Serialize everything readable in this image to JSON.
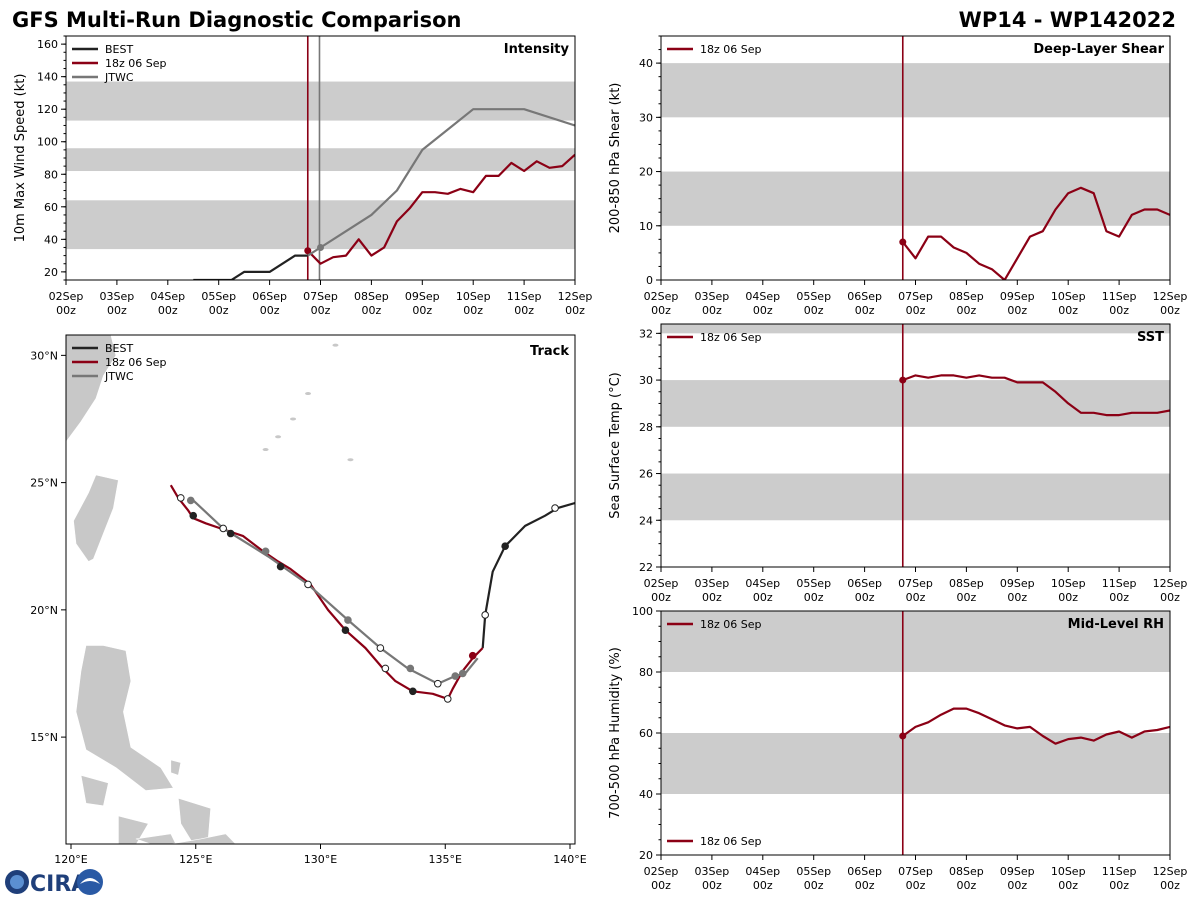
{
  "header": {
    "title_left": "GFS Multi-Run Diagnostic Comparison",
    "title_right": "WP14 - WP142022"
  },
  "logo": {
    "text": "CIRA"
  },
  "colors": {
    "best": "#222222",
    "run": "#8b0015",
    "jtwc": "#777777",
    "band": "#cccccc",
    "land": "#c8c8c8"
  },
  "time_ticks": [
    {
      "day": "02Sep",
      "hour": "00z"
    },
    {
      "day": "03Sep",
      "hour": "00z"
    },
    {
      "day": "04Sep",
      "hour": "00z"
    },
    {
      "day": "05Sep",
      "hour": "00z"
    },
    {
      "day": "06Sep",
      "hour": "00z"
    },
    {
      "day": "07Sep",
      "hour": "00z"
    },
    {
      "day": "08Sep",
      "hour": "00z"
    },
    {
      "day": "09Sep",
      "hour": "00z"
    },
    {
      "day": "10Sep",
      "hour": "00z"
    },
    {
      "day": "11Sep",
      "hour": "00z"
    },
    {
      "day": "12Sep",
      "hour": "00z"
    }
  ],
  "chart_data": [
    {
      "id": "intensity",
      "type": "line",
      "title": "Intensity",
      "ylabel": "10m Max Wind Speed (kt)",
      "xlim_days": [
        0,
        10
      ],
      "ylim": [
        15,
        165
      ],
      "yticks": [
        20,
        40,
        60,
        80,
        100,
        120,
        140,
        160
      ],
      "bands": [
        [
          34,
          64
        ],
        [
          82,
          96
        ],
        [
          113,
          137
        ]
      ],
      "init_time_day": 4.75,
      "jtwc_time_day": 4.98,
      "legend": [
        "BEST",
        "18z 06 Sep",
        "JTWC"
      ],
      "series": [
        {
          "name": "BEST",
          "x": [
            2.5,
            3.25,
            3.5,
            4.0,
            4.5,
            4.75
          ],
          "y": [
            15,
            15,
            20,
            20,
            30,
            30
          ]
        },
        {
          "name": "18z 06 Sep",
          "x": [
            4.75,
            5.0,
            5.25,
            5.5,
            5.75,
            6.0,
            6.25,
            6.5,
            6.75,
            7.0,
            7.25,
            7.5,
            7.75,
            8.0,
            8.25,
            8.5,
            8.75,
            9.0,
            9.25,
            9.5,
            9.75,
            10.0
          ],
          "y": [
            33,
            25,
            29,
            30,
            40,
            30,
            35,
            51,
            59,
            69,
            69,
            68,
            71,
            69,
            79,
            79,
            87,
            82,
            88,
            84,
            85,
            92
          ]
        },
        {
          "name": "JTWC",
          "x": [
            4.75,
            5.0,
            5.5,
            6.0,
            6.5,
            7.0,
            8.0,
            9.0,
            10.0
          ],
          "y": [
            30,
            35,
            45,
            55,
            70,
            95,
            120,
            120,
            110
          ]
        }
      ]
    },
    {
      "id": "shear",
      "type": "line",
      "title": "Deep-Layer Shear",
      "ylabel": "200-850 hPa Shear (kt)",
      "xlim_days": [
        0,
        10
      ],
      "ylim": [
        0,
        45
      ],
      "yticks": [
        0,
        10,
        20,
        30,
        40
      ],
      "bands": [
        [
          10,
          20
        ],
        [
          30,
          40
        ]
      ],
      "init_time_day": 4.75,
      "legend": [
        "18z 06 Sep"
      ],
      "series": [
        {
          "name": "18z 06 Sep",
          "x": [
            4.75,
            5.0,
            5.25,
            5.5,
            5.75,
            6.0,
            6.25,
            6.5,
            6.75,
            7.0,
            7.25,
            7.5,
            7.75,
            8.0,
            8.25,
            8.5,
            8.75,
            9.0,
            9.25,
            9.5,
            9.75,
            10.0
          ],
          "y": [
            7,
            4,
            8,
            8,
            6,
            5,
            3,
            2,
            0,
            4,
            8,
            9,
            13,
            16,
            17,
            16,
            9,
            8,
            12,
            13,
            13,
            12
          ]
        }
      ]
    },
    {
      "id": "sst",
      "type": "line",
      "title": "SST",
      "ylabel": "Sea Surface Temp (°C)",
      "xlim_days": [
        0,
        10
      ],
      "ylim": [
        22,
        32.4
      ],
      "yticks": [
        22,
        24,
        26,
        28,
        30,
        32
      ],
      "bands": [
        [
          24,
          26
        ],
        [
          28,
          30
        ],
        [
          32,
          34
        ]
      ],
      "init_time_day": 4.75,
      "legend": [
        "18z 06 Sep"
      ],
      "series": [
        {
          "name": "18z 06 Sep",
          "x": [
            4.75,
            5.0,
            5.25,
            5.5,
            5.75,
            6.0,
            6.25,
            6.5,
            6.75,
            7.0,
            7.25,
            7.5,
            7.75,
            8.0,
            8.25,
            8.5,
            8.75,
            9.0,
            9.25,
            9.5,
            9.75,
            10.0
          ],
          "y": [
            30.0,
            30.2,
            30.1,
            30.2,
            30.2,
            30.1,
            30.2,
            30.1,
            30.1,
            29.9,
            29.9,
            29.9,
            29.5,
            29.0,
            28.6,
            28.6,
            28.5,
            28.5,
            28.6,
            28.6,
            28.6,
            28.7
          ]
        }
      ]
    },
    {
      "id": "rh",
      "type": "line",
      "title": "Mid-Level RH",
      "ylabel": "700-500 hPa Humidity (%)",
      "xlim_days": [
        0,
        10
      ],
      "ylim": [
        20,
        100
      ],
      "yticks": [
        20,
        40,
        60,
        80,
        100
      ],
      "bands": [
        [
          40,
          60
        ],
        [
          80,
          100
        ]
      ],
      "init_time_day": 4.75,
      "legend": [
        "18z 06 Sep"
      ],
      "series": [
        {
          "name": "18z 06 Sep",
          "x": [
            4.75,
            5.0,
            5.25,
            5.5,
            5.75,
            6.0,
            6.25,
            6.5,
            6.75,
            7.0,
            7.25,
            7.5,
            7.75,
            8.0,
            8.25,
            8.5,
            8.75,
            9.0,
            9.25,
            9.5,
            9.75,
            10.0
          ],
          "y": [
            59,
            62,
            63.5,
            66,
            68,
            68,
            66.5,
            64.5,
            62.5,
            61.5,
            62,
            59,
            56.5,
            58,
            58.5,
            57.5,
            59.5,
            60.5,
            58.5,
            60.5,
            61,
            62
          ]
        }
      ]
    },
    {
      "id": "track",
      "type": "scatter",
      "title": "Track",
      "xlim_lon": [
        119.8,
        140.2
      ],
      "ylim_lat": [
        10.8,
        30.8
      ],
      "xticks": [
        {
          "v": 120,
          "label": "120°E"
        },
        {
          "v": 125,
          "label": "125°E"
        },
        {
          "v": 130,
          "label": "130°E"
        },
        {
          "v": 135,
          "label": "135°E"
        },
        {
          "v": 140,
          "label": "140°E"
        }
      ],
      "yticks": [
        {
          "v": 15,
          "label": "15°N"
        },
        {
          "v": 20,
          "label": "20°N"
        },
        {
          "v": 25,
          "label": "25°N"
        },
        {
          "v": 30,
          "label": "30°N"
        }
      ],
      "legend": [
        "BEST",
        "18z 06 Sep",
        "JTWC"
      ],
      "series": [
        {
          "name": "BEST",
          "lon": [
            140.2,
            139.5,
            139.0,
            138.2,
            137.4,
            136.9,
            136.6,
            136.5
          ],
          "lat": [
            24.2,
            24.0,
            23.7,
            23.3,
            22.5,
            21.5,
            19.8,
            18.5
          ]
        },
        {
          "name": "18z 06 Sep",
          "lon": [
            136.5,
            136.1,
            135.7,
            135.3,
            135.1,
            134.5,
            133.7,
            133.0,
            132.5,
            131.8,
            131.0,
            130.3,
            129.6,
            128.8,
            128.3,
            127.7,
            126.9,
            126.3,
            125.4,
            124.9,
            124.7,
            124.3,
            124.0
          ],
          "lat": [
            18.5,
            18.1,
            17.6,
            16.9,
            16.5,
            16.7,
            16.8,
            17.2,
            17.7,
            18.5,
            19.2,
            20.0,
            21.0,
            21.6,
            21.9,
            22.3,
            22.9,
            23.1,
            23.4,
            23.6,
            23.9,
            24.4,
            24.9
          ]
        },
        {
          "name": "JTWC",
          "lon": [
            136.3,
            135.8,
            135.4,
            134.7,
            133.5,
            132.4,
            131.1,
            129.5,
            127.9,
            126.1,
            124.9
          ],
          "lat": [
            18.1,
            17.5,
            17.4,
            17.1,
            17.7,
            18.5,
            19.6,
            21.0,
            22.1,
            23.2,
            24.3
          ]
        }
      ],
      "markers": [
        {
          "name": "18z 06 Sep",
          "lon": [
            136.1,
            135.1,
            133.7,
            132.6,
            131.0,
            128.4,
            126.4,
            124.9,
            124.4
          ],
          "lat": [
            18.2,
            16.5,
            16.8,
            17.7,
            19.2,
            21.7,
            23.0,
            23.7,
            24.4
          ],
          "filled": [
            true,
            false,
            true,
            false,
            true,
            true,
            true,
            true,
            false
          ]
        },
        {
          "name": "BEST",
          "lon": [
            139.4,
            137.4,
            136.6
          ],
          "lat": [
            24.0,
            22.5,
            19.8
          ],
          "filled": [
            false,
            true,
            false
          ]
        },
        {
          "name": "JTWC",
          "lon": [
            135.7,
            135.4,
            134.7,
            133.6,
            132.4,
            131.1,
            129.5,
            127.8,
            126.1,
            124.8
          ],
          "lat": [
            17.5,
            17.4,
            17.1,
            17.7,
            18.5,
            19.6,
            21.0,
            22.3,
            23.2,
            24.3
          ],
          "filled": [
            true,
            true,
            false,
            true,
            false,
            true,
            false,
            true,
            false,
            true
          ]
        }
      ]
    }
  ]
}
